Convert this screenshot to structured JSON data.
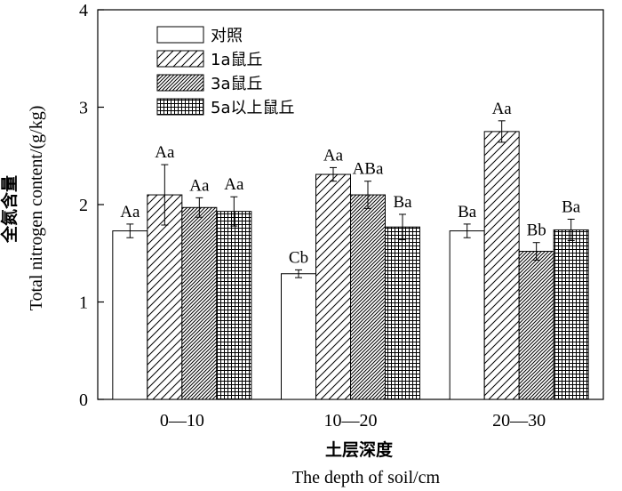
{
  "chart_data": {
    "type": "bar",
    "ylabel_cn": "全氮含量",
    "ylabel_en": "Total nitrogen content/(g/kg)",
    "xlabel_cn": "土层深度",
    "xlabel_en": "The depth of soil/cm",
    "ylim": [
      0,
      4
    ],
    "yticks": [
      "0",
      "1",
      "2",
      "3",
      "4"
    ],
    "categories": [
      "0—10",
      "10—20",
      "20—30"
    ],
    "legend_position": "top-left",
    "series": [
      {
        "name": "对照",
        "pattern": "blank",
        "values": [
          1.73,
          1.29,
          1.73
        ],
        "errors": [
          0.07,
          0.04,
          0.07
        ],
        "labels": [
          "Aa",
          "Cb",
          "Ba"
        ]
      },
      {
        "name": "1a鼠丘",
        "pattern": "diagonal",
        "values": [
          2.1,
          2.31,
          2.75
        ],
        "errors": [
          0.31,
          0.07,
          0.11
        ],
        "labels": [
          "Aa",
          "Aa",
          "Aa"
        ]
      },
      {
        "name": "3a鼠丘",
        "pattern": "dense-diagonal",
        "values": [
          1.97,
          2.1,
          1.52
        ],
        "errors": [
          0.1,
          0.14,
          0.09
        ],
        "labels": [
          "Aa",
          "ABa",
          "Bb"
        ]
      },
      {
        "name": "5a以上鼠丘",
        "pattern": "grid",
        "values": [
          1.93,
          1.77,
          1.74
        ],
        "errors": [
          0.15,
          0.13,
          0.11
        ],
        "labels": [
          "Aa",
          "Ba",
          "Ba"
        ]
      }
    ]
  }
}
